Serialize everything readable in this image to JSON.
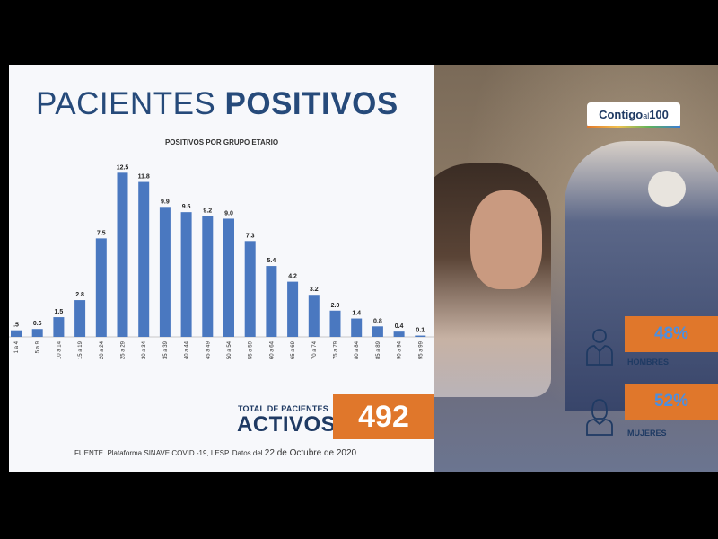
{
  "slide": {
    "title_light": "PACIENTES",
    "title_bold": "POSITIVOS"
  },
  "chart_data": {
    "type": "bar",
    "title": "POSITIVOS POR GRUPO ETARIO",
    "categories": [
      "1 a 4",
      "5 a 9",
      "10 a 14",
      "15 a 19",
      "20 a 24",
      "25 a 29",
      "30 a 34",
      "35 a 39",
      "40 a 44",
      "45 a 49",
      "50 a 54",
      "55 a 59",
      "60 a 64",
      "65 a 69",
      "70 a 74",
      "75 a 79",
      "80 a 84",
      "85 a 89",
      "90 a 94",
      "95 a 99"
    ],
    "values": [
      0.5,
      0.6,
      1.5,
      2.8,
      7.5,
      12.5,
      11.8,
      9.9,
      9.5,
      9.2,
      9.0,
      7.3,
      5.4,
      4.2,
      3.2,
      2.0,
      1.4,
      0.8,
      0.4,
      0.1
    ],
    "value_labels": [
      ".5",
      "0.6",
      "1.5",
      "2.8",
      "7.5",
      "12.5",
      "11.8",
      "9.9",
      "9.5",
      "9.2",
      "9.0",
      "7.3",
      "5.4",
      "4.2",
      "3.2",
      "2.0",
      "1.4",
      "0.8",
      "0.4",
      "0.1"
    ],
    "ylim": [
      0,
      13
    ],
    "grid": false,
    "bar_color": "#4a78c0"
  },
  "total": {
    "label": "TOTAL DE PACIENTES",
    "activos": "ACTIVOS",
    "value": "492"
  },
  "source": {
    "text": "FUENTE. Plataforma SINAVE COVID -19, LESP. Datos del",
    "date": "22 de Octubre de 2020"
  },
  "logo": {
    "main": "Contigo",
    "al": "al",
    "num": "100"
  },
  "stats": {
    "hombres_pct": "48%",
    "hombres_label": "HOMBRES",
    "mujeres_pct": "52%",
    "mujeres_label": "MUJERES"
  },
  "colors": {
    "accent": "#e0772b",
    "navy": "#264a7a",
    "bar": "#4a78c0"
  }
}
